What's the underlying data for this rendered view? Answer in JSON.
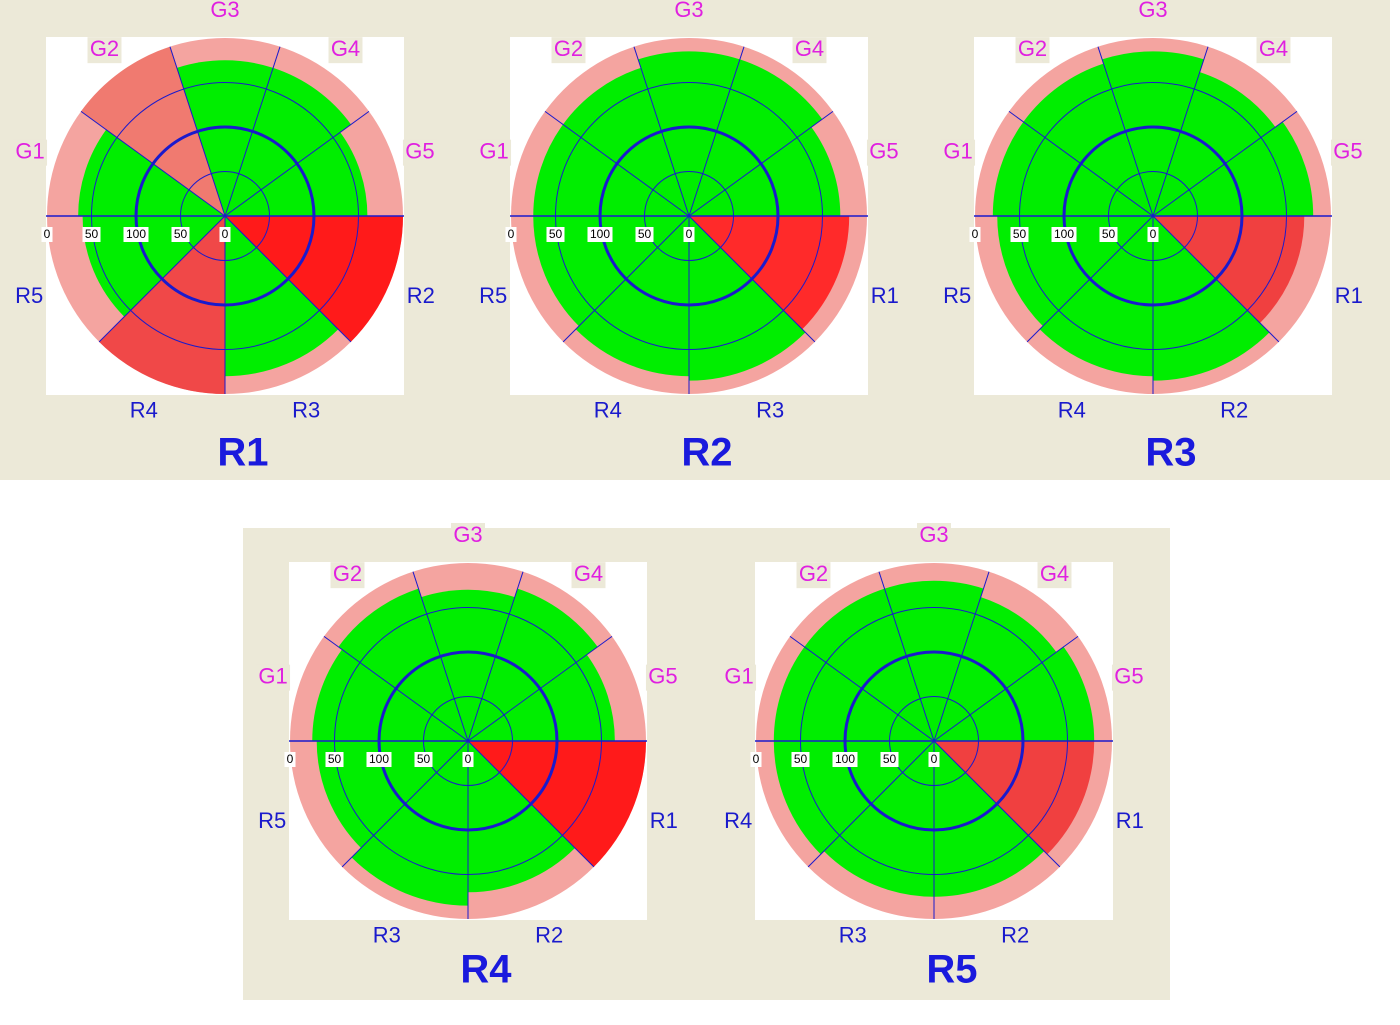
{
  "chart_data": [
    {
      "type": "polar",
      "title": "R1",
      "sectors": [
        "G1",
        "G2",
        "G3",
        "G4",
        "G5",
        "R2",
        "R3",
        "R4",
        "R5"
      ],
      "values": [
        165,
        200,
        175,
        175,
        160,
        200,
        180,
        200,
        160
      ],
      "colors": [
        "#00ee00",
        "#f07a70",
        "#00ee00",
        "#00ee00",
        "#00ee00",
        "#ff1a1a",
        "#00ee00",
        "#f04848",
        "#00ee00"
      ],
      "rlim": [
        0,
        200
      ],
      "rticks": [
        0,
        50,
        100,
        {
          "value": 150,
          "label": "50"
        },
        {
          "value": 200,
          "label": "0"
        }
      ]
    },
    {
      "type": "polar",
      "title": "R2",
      "sectors": [
        "G1",
        "G2",
        "G3",
        "G4",
        "G5",
        "R1",
        "R3",
        "R4",
        "R5"
      ],
      "values": [
        175,
        175,
        185,
        185,
        170,
        180,
        185,
        180,
        175
      ],
      "colors": [
        "#00ee00",
        "#00ee00",
        "#00ee00",
        "#00ee00",
        "#00ee00",
        "#ff2a2a",
        "#00ee00",
        "#00ee00",
        "#00ee00"
      ],
      "rlim": [
        0,
        200
      ],
      "rticks": [
        0,
        50,
        100,
        {
          "value": 150,
          "label": "50"
        },
        {
          "value": 200,
          "label": "0"
        }
      ]
    },
    {
      "type": "polar",
      "title": "R3",
      "sectors": [
        "G1",
        "G2",
        "G3",
        "G4",
        "G5",
        "R1",
        "R2",
        "R4",
        "R5"
      ],
      "values": [
        180,
        180,
        185,
        170,
        180,
        170,
        185,
        180,
        175
      ],
      "colors": [
        "#00ee00",
        "#00ee00",
        "#00ee00",
        "#00ee00",
        "#00ee00",
        "#f04040",
        "#00ee00",
        "#00ee00",
        "#00ee00"
      ],
      "rlim": [
        0,
        200
      ],
      "rticks": [
        0,
        50,
        100,
        {
          "value": 150,
          "label": "50"
        },
        {
          "value": 200,
          "label": "0"
        }
      ]
    },
    {
      "type": "polar",
      "title": "R4",
      "sectors": [
        "G1",
        "G2",
        "G3",
        "G4",
        "G5",
        "R1",
        "R2",
        "R3",
        "R5"
      ],
      "values": [
        175,
        180,
        170,
        180,
        165,
        200,
        170,
        185,
        170
      ],
      "colors": [
        "#00ee00",
        "#00ee00",
        "#00ee00",
        "#00ee00",
        "#00ee00",
        "#ff1a1a",
        "#00ee00",
        "#00ee00",
        "#00ee00"
      ],
      "rlim": [
        0,
        200
      ],
      "rticks": [
        0,
        50,
        100,
        {
          "value": 150,
          "label": "50"
        },
        {
          "value": 200,
          "label": "0"
        }
      ]
    },
    {
      "type": "polar",
      "title": "R5",
      "sectors": [
        "G1",
        "G2",
        "G3",
        "G4",
        "G5",
        "R1",
        "R2",
        "R3",
        "R4"
      ],
      "values": [
        180,
        180,
        180,
        170,
        180,
        180,
        175,
        175,
        180
      ],
      "colors": [
        "#00ee00",
        "#00ee00",
        "#00ee00",
        "#00ee00",
        "#00ee00",
        "#f04040",
        "#00ee00",
        "#00ee00",
        "#00ee00"
      ],
      "rlim": [
        0,
        200
      ],
      "rticks": [
        0,
        50,
        100,
        {
          "value": 150,
          "label": "50"
        },
        {
          "value": 200,
          "label": "0"
        }
      ]
    }
  ]
}
